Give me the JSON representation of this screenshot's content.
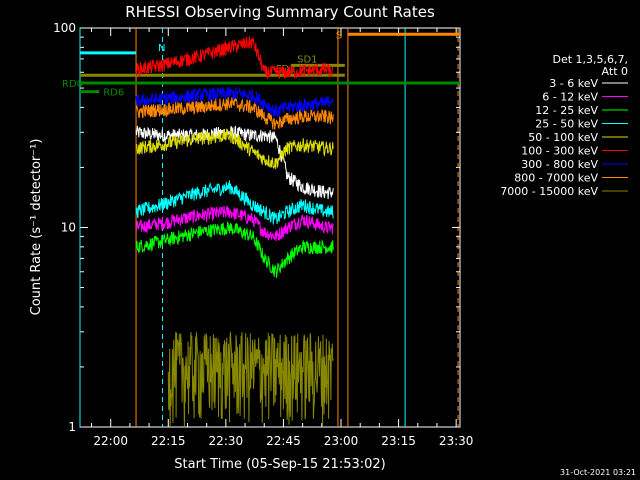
{
  "chart_data": {
    "type": "line",
    "title": "RHESSI Observing Summary Count Rates",
    "xlabel": "Start Time (05-Sep-15 21:53:02)",
    "ylabel": "Count Rate (s⁻¹ detector⁻¹)",
    "yscale": "log",
    "ylim": [
      1,
      100
    ],
    "xlim_minutes_from_start": [
      -1,
      98
    ],
    "y_ticks": [
      {
        "value": 1,
        "label": "1"
      },
      {
        "value": 10,
        "label": "10"
      },
      {
        "value": 100,
        "label": "100"
      }
    ],
    "x_ticks": [
      {
        "value": 7,
        "label": "22:00"
      },
      {
        "value": 22,
        "label": "22:15"
      },
      {
        "value": 37,
        "label": "22:30"
      },
      {
        "value": 52,
        "label": "22:45"
      },
      {
        "value": 67,
        "label": "23:00"
      },
      {
        "value": 82,
        "label": "23:15"
      },
      {
        "value": 97,
        "label": "23:30"
      }
    ],
    "legend_header": [
      "Det 1,3,5,6,7,",
      "Att 0"
    ],
    "legend_placement": "right",
    "series": [
      {
        "name": "3 - 6 keV",
        "color": "#ffffff",
        "x": [
          13.6,
          20,
          30,
          38,
          44,
          47,
          50,
          53,
          57,
          63,
          65
        ],
        "y": [
          30,
          29,
          29,
          30,
          29,
          29,
          28,
          18,
          16,
          15,
          15
        ]
      },
      {
        "name": "6 - 12 keV",
        "color": "#ff00ff",
        "x": [
          13.6,
          20,
          30,
          38,
          44,
          47,
          50,
          53,
          57,
          63,
          65
        ],
        "y": [
          10,
          10.5,
          11.5,
          12,
          11,
          9.5,
          9,
          10,
          11,
          10,
          10
        ]
      },
      {
        "name": "12 - 25 keV",
        "color": "#00ff00",
        "x": [
          13.6,
          20,
          30,
          38,
          44,
          47,
          50,
          53,
          57,
          63,
          65
        ],
        "y": [
          8,
          8.5,
          9.5,
          10,
          9,
          7,
          6,
          7,
          8,
          8,
          8
        ]
      },
      {
        "name": "25 - 50 keV",
        "color": "#00ffff",
        "x": [
          13.6,
          20,
          30,
          38,
          44,
          47,
          50,
          53,
          57,
          63,
          65
        ],
        "y": [
          12,
          13,
          15,
          16,
          13,
          12,
          11,
          12,
          13,
          12,
          12
        ]
      },
      {
        "name": "50 - 100 keV",
        "color": "#dddd00",
        "x": [
          13.6,
          20,
          30,
          38,
          44,
          47,
          50,
          53,
          57,
          63,
          65
        ],
        "y": [
          25,
          26,
          28,
          29,
          24,
          22,
          21,
          25,
          26,
          25,
          25
        ]
      },
      {
        "name": "100 - 300 keV",
        "color": "#ff0000",
        "x": [
          13.6,
          20,
          30,
          38,
          44,
          47,
          50,
          53,
          57,
          63,
          65
        ],
        "y": [
          62,
          65,
          72,
          80,
          85,
          60,
          60,
          60,
          61,
          62,
          60
        ]
      },
      {
        "name": "300 - 800 keV",
        "color": "#0000ff",
        "x": [
          13.6,
          20,
          30,
          38,
          44,
          47,
          50,
          53,
          57,
          63,
          65
        ],
        "y": [
          43,
          44,
          46,
          47,
          46,
          42,
          38,
          40,
          41,
          42,
          45
        ]
      },
      {
        "name": "800 - 7000 keV",
        "color": "#ff8800",
        "x": [
          13.6,
          20,
          30,
          38,
          44,
          47,
          50,
          53,
          57,
          63,
          65
        ],
        "y": [
          38,
          39,
          40,
          42,
          40,
          36,
          33,
          35,
          36,
          36,
          35
        ]
      },
      {
        "name": "7000 - 15000 keV",
        "color": "#888800",
        "x": [
          22,
          30,
          38,
          44,
          50,
          56,
          62,
          65
        ],
        "y": [
          2,
          2,
          2,
          2,
          2,
          2,
          2,
          2
        ]
      }
    ],
    "flags": [
      {
        "label": "N",
        "color": "#00ffff",
        "x": [
          -1,
          13.6
        ],
        "y": 75
      },
      {
        "label": "S",
        "color": "#ff8800",
        "x": [
          68.8,
          98
        ],
        "y": 93
      },
      {
        "label": "SD1",
        "color": "#888800",
        "x": [
          54,
          68
        ],
        "y": 65
      },
      {
        "label": "FD2",
        "color": "#888800",
        "x": [
          -1,
          68
        ],
        "y": 58
      },
      {
        "label": "RD0",
        "color": "#008800",
        "x": [
          -1,
          98
        ],
        "y": 53
      },
      {
        "label": "RD6",
        "color": "#008800",
        "x": [
          -1,
          4
        ],
        "y": 48
      }
    ],
    "vertical_markers": [
      {
        "color": "#00ffff",
        "x": -1,
        "style": "solid"
      },
      {
        "color": "#ff8800",
        "x": 13.6,
        "style": "solid"
      },
      {
        "color": "#00ffff",
        "x": 20.5,
        "style": "dashed"
      },
      {
        "color": "#ff8800",
        "x": 66.2,
        "style": "solid"
      },
      {
        "color": "#ff8800",
        "x": 68.8,
        "style": "solid"
      },
      {
        "color": "#00ffff",
        "x": 83.7,
        "style": "solid"
      },
      {
        "color": "#ff8800",
        "x": 97.5,
        "style": "dashed"
      }
    ]
  },
  "footer": {
    "date_stamp": "31-Oct-2021 03:21"
  }
}
